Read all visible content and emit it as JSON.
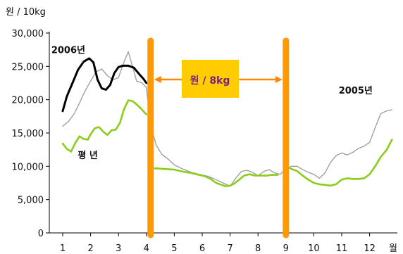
{
  "chart_data": {
    "type": "line",
    "title": "",
    "y_unit": "원 / 10kg",
    "x_unit": "월",
    "ylim": [
      0,
      30000
    ],
    "y_ticks": [
      0,
      5000,
      10000,
      15000,
      20000,
      25000,
      30000
    ],
    "y_tick_labels": [
      "0",
      "5,000",
      "10,000",
      "15,000",
      "20,000",
      "25,000",
      "30,000"
    ],
    "x_ticks": [
      1,
      2,
      3,
      4,
      5,
      6,
      7,
      8,
      9,
      10,
      11,
      12
    ],
    "x_tick_labels": [
      "1",
      "2",
      "3",
      "4",
      "5",
      "6",
      "7",
      "8",
      "9",
      "10",
      "11",
      "12"
    ],
    "grid": false,
    "series": [
      {
        "name": "2006년",
        "color": "#000000",
        "x": [
          1.0,
          1.15,
          1.35,
          1.55,
          1.75,
          1.95,
          2.1,
          2.25,
          2.4,
          2.55,
          2.7,
          2.85,
          3.0,
          3.15,
          3.35,
          3.55,
          3.75,
          3.9,
          4.0
        ],
        "values": [
          18300,
          20500,
          22500,
          24500,
          25700,
          26200,
          25600,
          23000,
          21700,
          21500,
          22200,
          24000,
          24900,
          25100,
          25100,
          24800,
          23800,
          23100,
          22500
        ]
      },
      {
        "name": "2005년",
        "color": "#9a9a9a",
        "x": [
          1.0,
          1.2,
          1.4,
          1.6,
          1.8,
          2.0,
          2.2,
          2.4,
          2.6,
          2.8,
          3.0,
          3.2,
          3.35,
          3.5,
          3.65,
          3.85,
          4.0,
          4.15,
          4.35,
          4.55,
          4.8,
          5.0,
          5.3,
          5.6,
          5.9,
          6.2,
          6.5,
          6.7,
          6.85,
          7.0,
          7.2,
          7.4,
          7.6,
          7.8,
          8.0,
          8.2,
          8.4,
          8.6,
          8.8,
          9.0,
          9.2,
          9.4,
          9.6,
          9.8,
          10.0,
          10.2,
          10.4,
          10.6,
          10.8,
          11.0,
          11.2,
          11.4,
          11.6,
          11.8,
          12.0,
          12.2,
          12.4,
          12.6,
          12.8
        ],
        "values": [
          16000,
          16700,
          17800,
          19500,
          21300,
          22800,
          24200,
          24600,
          23600,
          23000,
          23300,
          25700,
          27200,
          25000,
          22800,
          22500,
          21800,
          16200,
          13200,
          11800,
          11000,
          10200,
          9600,
          9100,
          8800,
          8500,
          8000,
          7600,
          7300,
          7000,
          8200,
          9200,
          9400,
          9100,
          8600,
          9200,
          9500,
          9000,
          8800,
          9700,
          10000,
          10000,
          9500,
          9100,
          8800,
          8200,
          9000,
          10600,
          11600,
          12000,
          11700,
          12100,
          12700,
          13000,
          13600,
          15800,
          17900,
          18300,
          18500
        ]
      },
      {
        "name": "평 년",
        "color": "#8ccc1a",
        "x": [
          1.0,
          1.15,
          1.3,
          1.45,
          1.6,
          1.75,
          1.9,
          2.0,
          2.15,
          2.3,
          2.45,
          2.6,
          2.75,
          2.9,
          3.05,
          3.2,
          3.35,
          3.5,
          3.65,
          3.8,
          3.95,
          4.0
        ],
        "values": [
          13400,
          12600,
          12200,
          13500,
          14500,
          14100,
          14000,
          14800,
          15700,
          15900,
          15200,
          14700,
          15400,
          15500,
          16500,
          18600,
          19900,
          19800,
          19300,
          18700,
          18000,
          17800
        ]
      },
      {
        "name": "평 년",
        "color": "#8ccc1a",
        "x": [
          4.3,
          4.6,
          5.0,
          5.3,
          5.6,
          5.9,
          6.1,
          6.3,
          6.5,
          6.7,
          6.85,
          7.0,
          7.15,
          7.3,
          7.5,
          7.7,
          7.9,
          8.1,
          8.3,
          8.5,
          8.7
        ],
        "values": [
          9700,
          9600,
          9500,
          9200,
          9000,
          8700,
          8500,
          8100,
          7500,
          7200,
          7000,
          7100,
          7400,
          7900,
          8600,
          8800,
          8600,
          8600,
          8600,
          8700,
          8700
        ]
      },
      {
        "name": "평 년",
        "color": "#8ccc1a",
        "x": [
          9.0,
          9.2,
          9.4,
          9.6,
          9.8,
          10.0,
          10.2,
          10.4,
          10.6,
          10.8,
          11.0,
          11.2,
          11.4,
          11.6,
          11.8,
          12.0,
          12.2,
          12.4,
          12.6,
          12.8
        ],
        "values": [
          10000,
          9600,
          9300,
          8600,
          8000,
          7500,
          7300,
          7200,
          7100,
          7300,
          8000,
          8200,
          8100,
          8100,
          8200,
          8800,
          10000,
          11400,
          12400,
          14000
        ]
      }
    ],
    "annotations": [
      {
        "text": "2006년",
        "x": 1.2,
        "y": 27000
      },
      {
        "text": "2005년",
        "x": 11.5,
        "y": 20900
      },
      {
        "text": "평 년",
        "x": 1.9,
        "y": 11200
      }
    ],
    "markers": {
      "vertical_lines": [
        {
          "x": 4.15,
          "color": "#ff9900"
        },
        {
          "x": 9.0,
          "color": "#ff9900"
        }
      ],
      "box": {
        "text": "원 / 8kg",
        "color": "#ffcc00"
      },
      "arrow_color": "#ff8800"
    }
  }
}
